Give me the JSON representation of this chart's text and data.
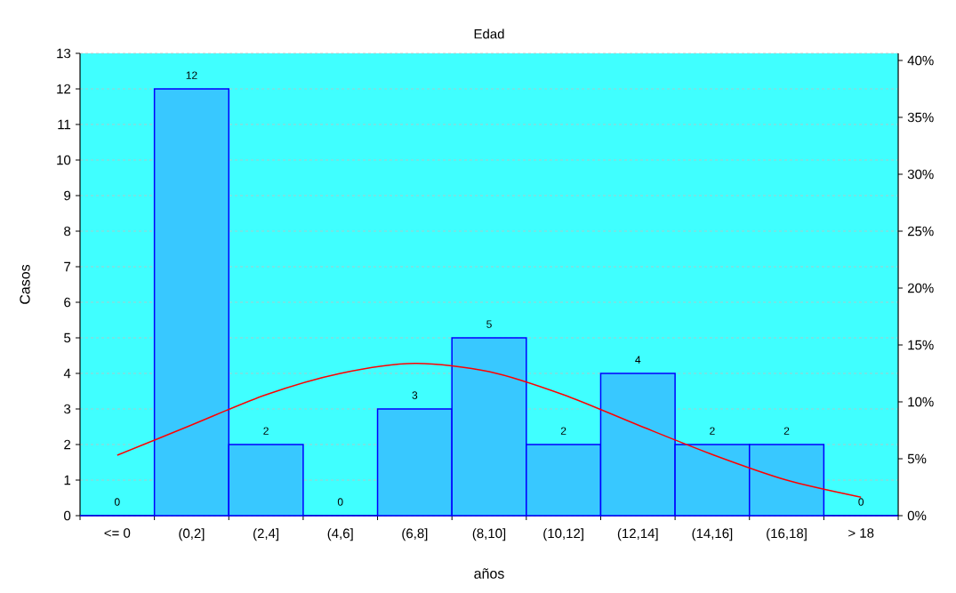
{
  "chart_data": {
    "type": "bar",
    "title": "Edad",
    "xlabel": "años",
    "ylabel": "Casos",
    "categories": [
      "<= 0",
      "(0,2]",
      "(2,4]",
      "(4,6]",
      "(6,8]",
      "(8,10]",
      "(10,12]",
      "(12,14]",
      "(14,16]",
      "(16,18]",
      "> 18"
    ],
    "series": [
      {
        "color": "#38c8ff",
        "values": [
          0,
          12,
          2,
          0,
          3,
          5,
          2,
          4,
          2,
          2,
          0
        ],
        "value_labels": [
          "0",
          "12",
          "2",
          "0",
          "3",
          "5",
          "2",
          "4",
          "2",
          "2",
          "0"
        ]
      },
      {
        "type": "line",
        "color": "#ff0000",
        "values": [
          1.7,
          2.55,
          3.4,
          4.0,
          4.28,
          4.05,
          3.4,
          2.55,
          1.72,
          1.0,
          0.52
        ]
      }
    ],
    "grid": "y",
    "ylim": [
      0,
      13
    ],
    "yticks": [
      0,
      1,
      2,
      3,
      4,
      5,
      6,
      7,
      8,
      9,
      10,
      11,
      12,
      13
    ],
    "y2lim": [
      0,
      40.625
    ],
    "y2ticks": [
      {
        "value": 0,
        "label": "0%"
      },
      {
        "value": 5,
        "label": "5%"
      },
      {
        "value": 10,
        "label": "10%"
      },
      {
        "value": 15,
        "label": "15%"
      },
      {
        "value": 20,
        "label": "20%"
      },
      {
        "value": 25,
        "label": "25%"
      },
      {
        "value": 30,
        "label": "30%"
      },
      {
        "value": 35,
        "label": "35%"
      },
      {
        "value": 40,
        "label": "40%"
      }
    ]
  }
}
